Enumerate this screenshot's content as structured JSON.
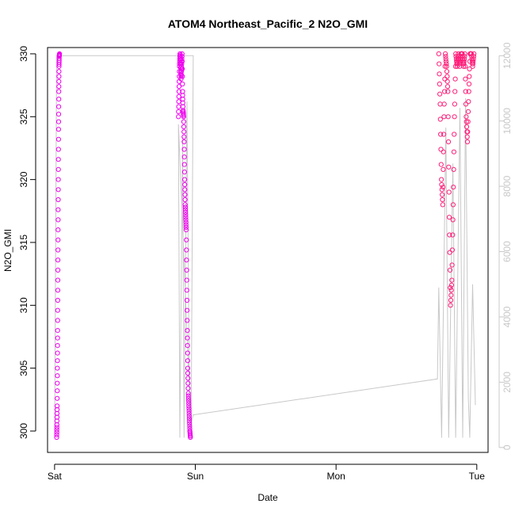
{
  "chart_data": {
    "type": "scatter",
    "title": "ATOM4 Northeast_Pacific_2 N2O_GMI",
    "xlabel": "Date",
    "ylabel": "N2O_GMI",
    "x_ticks": [
      "Sat",
      "Sun",
      "Mon",
      "Tue"
    ],
    "x_unit": "days since Sat 00:00",
    "xlim": [
      -0.05,
      3.08
    ],
    "ylim": [
      298.3,
      330.5
    ],
    "y_ticks": [
      300,
      305,
      310,
      315,
      320,
      325,
      330
    ],
    "y2lim": [
      -150,
      12250
    ],
    "y2_ticks": [
      0,
      2000,
      4000,
      6000,
      8000,
      10000,
      12000
    ],
    "colors": {
      "magenta": "#ee00ee",
      "pink": "#ff1f7a",
      "altitude_line": "#c8c8c8"
    },
    "series": [
      {
        "marker": "circle-open",
        "color": "magenta",
        "segments": [
          {
            "t0": 0.015,
            "t1": 0.035,
            "y": [
              299.5,
              300.5,
              302,
              305,
              308,
              312,
              316,
              320,
              324,
              327,
              329,
              329.8,
              330
            ]
          },
          {
            "t0": 0.88,
            "t1": 0.965,
            "y": [
              325,
              327,
              329,
              330,
              329.5,
              328,
              329,
              330,
              327,
              325.5,
              325,
              323,
              320,
              318,
              317,
              316,
              312,
              308,
              305,
              303,
              302,
              301,
              300,
              299.5
            ]
          }
        ]
      },
      {
        "marker": "circle-open",
        "color": "pink",
        "segments": [
          {
            "t0": 2.73,
            "t1": 2.98,
            "y": [
              330,
              326,
              320,
              318,
              325,
              330,
              329,
              327,
              317,
              310,
              312,
              318,
              325,
              330,
              329,
              330,
              329,
              330,
              330,
              329,
              330,
              325,
              323,
              327,
              330,
              330,
              329,
              330
            ]
          }
        ]
      }
    ],
    "altitude_series": {
      "axis": "right",
      "color": "altitude_line",
      "points": [
        [
          0.0,
          350
        ],
        [
          0.015,
          12000
        ],
        [
          0.985,
          12000
        ],
        [
          0.97,
          400
        ],
        [
          0.88,
          9900
        ],
        [
          0.89,
          300
        ],
        [
          0.91,
          9500
        ],
        [
          0.92,
          300
        ],
        [
          0.94,
          10600
        ],
        [
          0.96,
          600
        ],
        [
          0.985,
          1000
        ],
        [
          2.72,
          2100
        ],
        [
          2.73,
          4900
        ],
        [
          2.75,
          300
        ],
        [
          2.78,
          9800
        ],
        [
          2.8,
          300
        ],
        [
          2.83,
          8700
        ],
        [
          2.85,
          300
        ],
        [
          2.88,
          10400
        ],
        [
          2.9,
          300
        ],
        [
          2.92,
          10700
        ],
        [
          2.94,
          1500
        ],
        [
          2.95,
          300
        ],
        [
          2.97,
          5000
        ],
        [
          2.99,
          1300
        ]
      ]
    }
  }
}
